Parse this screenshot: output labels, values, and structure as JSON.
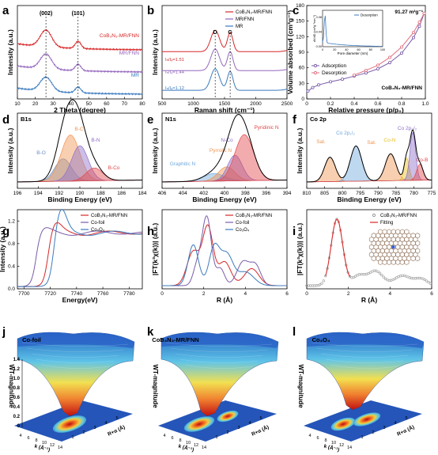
{
  "chart_data": [
    {
      "panel": "a",
      "type": "line",
      "xlabel": "2 Theta (degree)",
      "ylabel": "Intensity (a.u.)",
      "xlim": [
        10,
        80
      ],
      "xticks": [
        10,
        20,
        30,
        40,
        50,
        60,
        70,
        80
      ],
      "annotations": [
        "(002)",
        "(101)"
      ],
      "series": [
        {
          "name": "CoB₃N₃-MR/FNN",
          "color": "#d62728",
          "peaks": [
            [
              26,
              0.95
            ],
            [
              44,
              0.5
            ]
          ],
          "offset": 0.55
        },
        {
          "name": "MR/FNN",
          "color": "#9467bd",
          "peaks": [
            [
              26,
              0.85
            ],
            [
              44,
              0.45
            ]
          ],
          "offset": 0.3
        },
        {
          "name": "MR",
          "color": "#3b7bbf",
          "peaks": [
            [
              26,
              0.8
            ],
            [
              44,
              0.4
            ]
          ],
          "offset": 0.05
        }
      ]
    },
    {
      "panel": "b",
      "type": "line",
      "xlabel": "Raman shift (cm⁻¹)",
      "ylabel": "Intensity (a.u.)",
      "xlim": [
        500,
        2500
      ],
      "xticks": [
        500,
        1000,
        1500,
        2000,
        2500
      ],
      "annotations": [
        "D",
        "G"
      ],
      "ratios": [
        "Iₙ/Iₔ=1.51",
        "Iₙ/Iₔ=1.44",
        "Iₙ/Iₔ=1.12"
      ],
      "series": [
        {
          "name": "CoB₃N₃-MR/FNN",
          "color": "#d62728"
        },
        {
          "name": "MR/FNN",
          "color": "#9467bd"
        },
        {
          "name": "MR",
          "color": "#3b7bbf"
        }
      ]
    },
    {
      "panel": "c",
      "type": "line",
      "xlabel": "Relative pressure (p/p₀)",
      "ylabel": "Volume absorbed (cm³g⁻¹)",
      "xlim": [
        0,
        1.0
      ],
      "ylim": [
        0,
        180
      ],
      "yticks": [
        0,
        30,
        60,
        90,
        120,
        150,
        180
      ],
      "annotations": [
        "91.27 m²g⁻¹",
        "CoB₃N₃-MR/FNN"
      ],
      "series": [
        {
          "name": "Adsorption",
          "color": "#7a5ca8",
          "points": [
            [
              0.01,
              15
            ],
            [
              0.05,
              22
            ],
            [
              0.1,
              27
            ],
            [
              0.2,
              33
            ],
            [
              0.3,
              38
            ],
            [
              0.4,
              44
            ],
            [
              0.5,
              50
            ],
            [
              0.6,
              58
            ],
            [
              0.7,
              70
            ],
            [
              0.8,
              88
            ],
            [
              0.9,
              118
            ],
            [
              0.95,
              140
            ],
            [
              0.99,
              165
            ]
          ]
        },
        {
          "name": "Desorption",
          "color": "#e07080",
          "points": [
            [
              0.4,
              46
            ],
            [
              0.5,
              55
            ],
            [
              0.6,
              65
            ],
            [
              0.7,
              80
            ],
            [
              0.8,
              100
            ],
            [
              0.9,
              128
            ],
            [
              0.95,
              148
            ],
            [
              0.99,
              165
            ]
          ]
        }
      ],
      "inset": {
        "xlabel": "Pore diameter (nm)",
        "ylabel": "dV/dD (cm³g⁻¹nm⁻¹)",
        "legend": "Desorption",
        "xticks": [
          0,
          20,
          40,
          60,
          80,
          100
        ],
        "yticks": [
          "0.00",
          "0.04",
          "0.08"
        ]
      }
    },
    {
      "panel": "d",
      "type": "line",
      "title": "B1s",
      "xlabel": "Binding Energy (eV)",
      "ylabel": "Intensity (a.u.)",
      "xlim": [
        196,
        184
      ],
      "xticks": [
        196,
        194,
        192,
        190,
        188,
        186,
        184
      ],
      "components": [
        {
          "name": "B-O",
          "color": "#6a8fc7",
          "center": 191.6
        },
        {
          "name": "B-C",
          "color": "#f0944f",
          "center": 190.9
        },
        {
          "name": "B-N",
          "color": "#8e6fc9",
          "center": 190.0
        },
        {
          "name": "B-Co",
          "color": "#e2474b",
          "center": 188.6
        }
      ]
    },
    {
      "panel": "e",
      "type": "line",
      "title": "N1s",
      "xlabel": "Binding Energy (eV)",
      "ylabel": "Intensity (a.u.)",
      "xlim": [
        406,
        394
      ],
      "xticks": [
        406,
        404,
        402,
        400,
        398,
        396,
        394
      ],
      "components": [
        {
          "name": "Graphitic N",
          "color": "#6fa8dc",
          "center": 401.0
        },
        {
          "name": "Pyrrolic N",
          "color": "#f0944f",
          "center": 399.8
        },
        {
          "name": "N-Co",
          "color": "#8e6fc9",
          "center": 399.0
        },
        {
          "name": "Pyridinic N",
          "color": "#e2474b",
          "center": 398.1
        }
      ]
    },
    {
      "panel": "f",
      "type": "line",
      "title": "Co 2p",
      "xlabel": "Binding Energy (eV)",
      "ylabel": "Intensity (a.u.)",
      "xlim": [
        810,
        775
      ],
      "xticks": [
        810,
        805,
        800,
        795,
        790,
        785,
        780,
        775
      ],
      "components": [
        {
          "name": "Sat.",
          "color": "#f0944f",
          "center": 803.5
        },
        {
          "name": "Co 2p₁/₂",
          "color": "#6fa8dc",
          "center": 796.2
        },
        {
          "name": "Sat.",
          "color": "#f0944f",
          "center": 786.5
        },
        {
          "name": "Co-N",
          "color": "#e8c020",
          "center": 782.0
        },
        {
          "name": "Co 2p₃/₂",
          "color": "#8e6fc9",
          "center": 780.3
        },
        {
          "name": "Co-B",
          "color": "#e2474b",
          "center": 778.3
        }
      ]
    },
    {
      "panel": "g",
      "type": "line",
      "xlabel": "Energy(eV)",
      "ylabel": "Intensity (a.u.)",
      "xlim": [
        7695,
        7790
      ],
      "xticks": [
        7700,
        7720,
        7740,
        7760,
        7780
      ],
      "ylim": [
        0,
        1.4
      ],
      "yticks": [
        "0.0",
        "0.4",
        "0.8",
        "1.2"
      ],
      "series": [
        {
          "name": "CoB₃N₃-MR/FNN",
          "color": "#d62728"
        },
        {
          "name": "Co-foil",
          "color": "#7a5ca8"
        },
        {
          "name": "Co₃O₄",
          "color": "#3b7bbf"
        }
      ]
    },
    {
      "panel": "h",
      "type": "line",
      "xlabel": "R (Å)",
      "ylabel": "|FT(k³χ(k))| (a.u.)",
      "xlim": [
        0,
        6
      ],
      "xticks": [
        0,
        2,
        4,
        6
      ],
      "series": [
        {
          "name": "CoB₃N₃-MR/FNN",
          "color": "#d62728"
        },
        {
          "name": "Co-foil",
          "color": "#7a5ca8"
        },
        {
          "name": "Co₃O₄",
          "color": "#3b7bbf"
        }
      ]
    },
    {
      "panel": "i",
      "type": "line",
      "xlabel": "R (Å)",
      "ylabel": "|FT(k³χ(k))| (a.u.)",
      "xlim": [
        0,
        6
      ],
      "xticks": [
        0,
        2,
        4,
        6
      ],
      "series": [
        {
          "name": "CoB₃N₃-MR/FNN",
          "color": "#999999"
        },
        {
          "name": "Fitting",
          "color": "#d62728"
        }
      ]
    },
    {
      "panel": "j",
      "type": "heatmap",
      "title": "Co-foil",
      "zlabel": "WT-magnitude",
      "xlabel": "k (Å⁻¹)",
      "ylabel": "R+α (Å)",
      "zticks": [
        "0",
        "0.2",
        "0.4",
        "0.6",
        "0.8",
        "1.0",
        "1.2",
        "1.4"
      ],
      "kticks": [
        "4",
        "6",
        "8",
        "10",
        "12",
        "14"
      ],
      "rticks": [
        "1",
        "2",
        "3",
        "4",
        "5"
      ]
    },
    {
      "panel": "k",
      "type": "heatmap",
      "title": "CoB₃N₃-MR/FNN",
      "zlabel": "WT-magnitude",
      "xlabel": "k (Å⁻¹)",
      "ylabel": "R+α (Å)",
      "kticks": [
        "4",
        "6",
        "8",
        "10",
        "12",
        "14"
      ],
      "rticks": [
        "1",
        "2",
        "3",
        "4",
        "5"
      ]
    },
    {
      "panel": "l",
      "type": "heatmap",
      "title": "Co₃O₄",
      "zlabel": "WT-magnitude",
      "xlabel": "k (Å⁻¹)",
      "ylabel": "R+α (Å)",
      "kticks": [
        "4",
        "6",
        "8",
        "10",
        "12",
        "14"
      ],
      "rticks": [
        "1",
        "2",
        "3",
        "4",
        "5"
      ]
    }
  ],
  "panel_letters": [
    "a",
    "b",
    "c",
    "d",
    "e",
    "f",
    "g",
    "h",
    "i",
    "j",
    "k",
    "l"
  ]
}
